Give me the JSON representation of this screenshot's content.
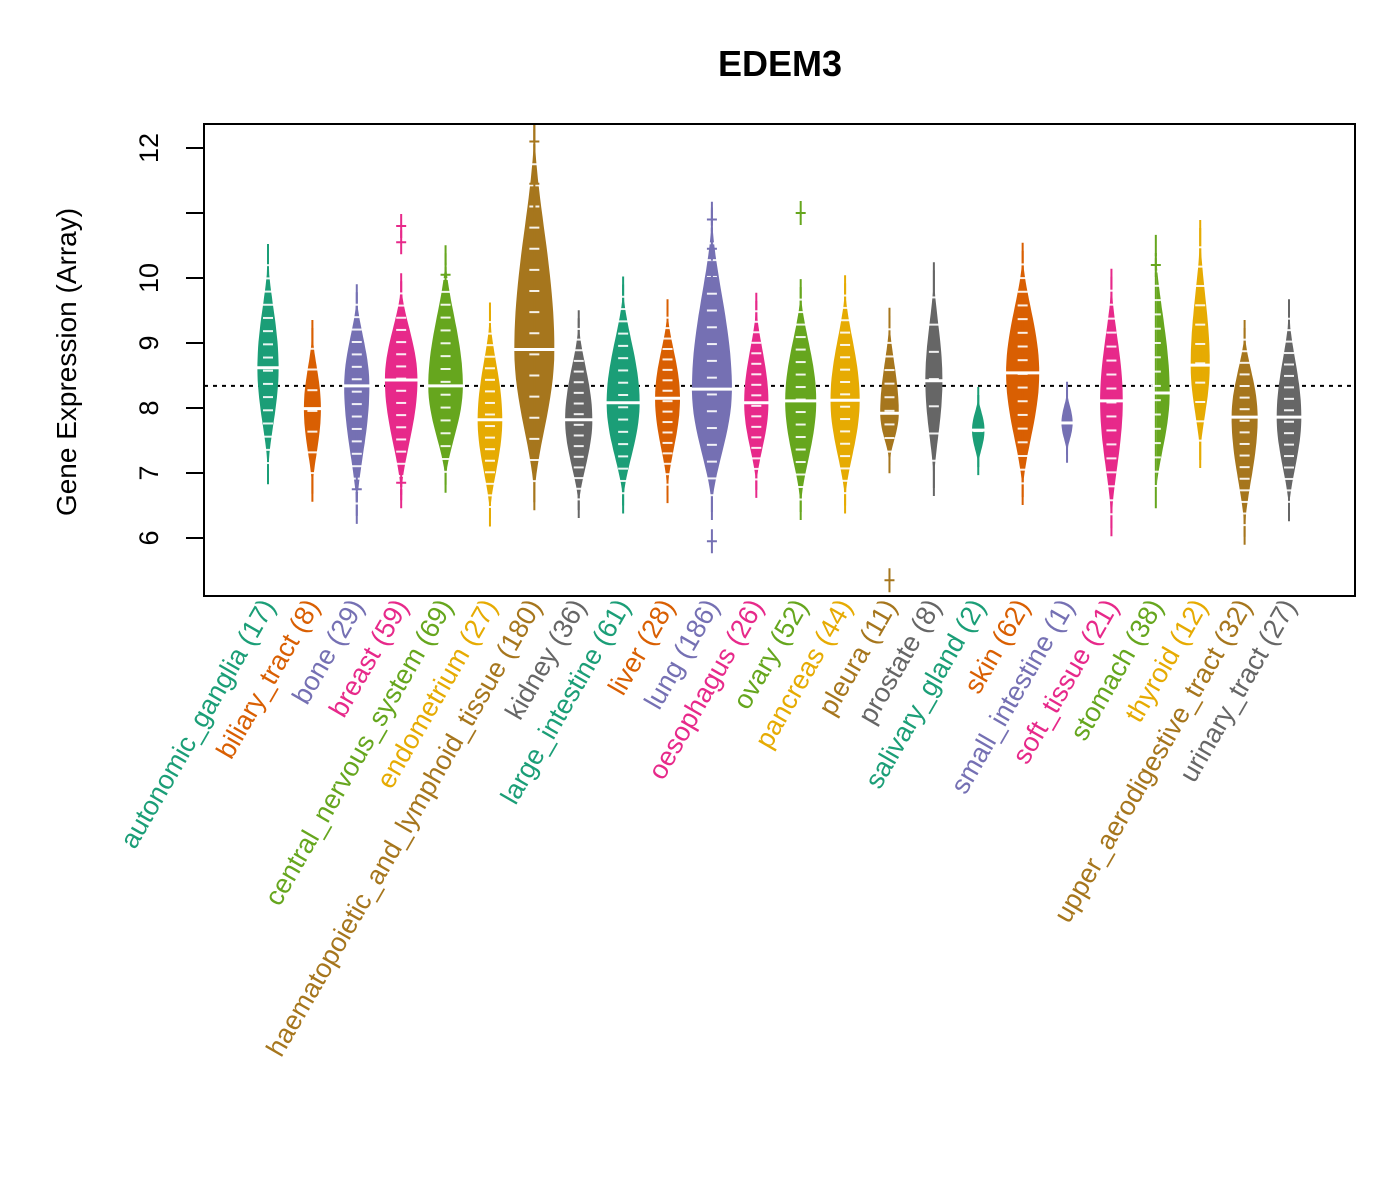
{
  "chart_data": {
    "type": "violin",
    "title": "EDEM3",
    "xlabel": "",
    "ylabel": "Gene Expression (Array)",
    "ylim": [
      5.1,
      12.4
    ],
    "yticks": [
      6,
      7,
      8,
      9,
      10,
      11,
      12
    ],
    "ytick_labels": [
      "6",
      "7",
      "8",
      "9",
      "10",
      "",
      "12"
    ],
    "reference_line": 8.34,
    "grid": false,
    "legend": "none",
    "palette": [
      "#1B9E77",
      "#D95F02",
      "#7570B3",
      "#E7298A",
      "#66A61E",
      "#E6AB02",
      "#A6761D",
      "#666666"
    ],
    "categories": [
      {
        "name": "autonomic_ganglia",
        "n": 17,
        "label": "autonomic_ganglia (17)",
        "color": "#1B9E77",
        "median": 8.62,
        "min": 6.95,
        "max": 10.4,
        "outliers": []
      },
      {
        "name": "biliary_tract",
        "n": 8,
        "label": "biliary_tract (8)",
        "color": "#D95F02",
        "median": 7.99,
        "min": 6.68,
        "max": 9.23,
        "outliers": []
      },
      {
        "name": "bone",
        "n": 29,
        "label": "bone (29)",
        "color": "#7570B3",
        "median": 8.34,
        "min": 6.34,
        "max": 9.78,
        "outliers": [
          6.75
        ]
      },
      {
        "name": "breast",
        "n": 59,
        "label": "breast (59)",
        "color": "#E7298A",
        "median": 8.43,
        "min": 6.58,
        "max": 9.95,
        "outliers": [
          10.55,
          10.8,
          6.85
        ]
      },
      {
        "name": "central_nervous_system",
        "n": 69,
        "label": "central_nervous_system (69)",
        "color": "#66A61E",
        "median": 8.34,
        "min": 6.82,
        "max": 10.38,
        "outliers": [
          10.05
        ]
      },
      {
        "name": "endometrium",
        "n": 27,
        "label": "endometrium (27)",
        "color": "#E6AB02",
        "median": 7.82,
        "min": 6.3,
        "max": 9.5,
        "outliers": []
      },
      {
        "name": "haematopoietic_and_lymphoid_tissue",
        "n": 180,
        "label": "haematopoietic_and_lymphoid_tissue (180)",
        "color": "#A6761D",
        "median": 8.9,
        "min": 6.55,
        "max": 12.4,
        "outliers": [
          12.1,
          11.45,
          11.2,
          11.0
        ]
      },
      {
        "name": "kidney",
        "n": 36,
        "label": "kidney (36)",
        "color": "#666666",
        "median": 7.82,
        "min": 6.43,
        "max": 9.38,
        "outliers": []
      },
      {
        "name": "large_intestine",
        "n": 61,
        "label": "large_intestine (61)",
        "color": "#1B9E77",
        "median": 8.08,
        "min": 6.5,
        "max": 9.9,
        "outliers": []
      },
      {
        "name": "liver",
        "n": 28,
        "label": "liver (28)",
        "color": "#D95F02",
        "median": 8.15,
        "min": 6.66,
        "max": 9.55,
        "outliers": []
      },
      {
        "name": "lung",
        "n": 186,
        "label": "lung (186)",
        "color": "#7570B3",
        "median": 8.29,
        "min": 6.4,
        "max": 11.05,
        "outliers": [
          10.9,
          10.45,
          10.0,
          5.95
        ]
      },
      {
        "name": "oesophagus",
        "n": 26,
        "label": "oesophagus (26)",
        "color": "#E7298A",
        "median": 8.08,
        "min": 6.74,
        "max": 9.65,
        "outliers": []
      },
      {
        "name": "ovary",
        "n": 52,
        "label": "ovary (52)",
        "color": "#66A61E",
        "median": 8.11,
        "min": 6.4,
        "max": 9.86,
        "outliers": [
          11.0
        ]
      },
      {
        "name": "pancreas",
        "n": 44,
        "label": "pancreas (44)",
        "color": "#E6AB02",
        "median": 8.12,
        "min": 6.5,
        "max": 9.92,
        "outliers": []
      },
      {
        "name": "pleura",
        "n": 11,
        "label": "pleura (11)",
        "color": "#A6761D",
        "median": 7.92,
        "min": 7.12,
        "max": 9.42,
        "outliers": [
          5.35
        ]
      },
      {
        "name": "prostate",
        "n": 8,
        "label": "prostate (8)",
        "color": "#666666",
        "median": 8.42,
        "min": 6.77,
        "max": 10.12,
        "outliers": []
      },
      {
        "name": "salivary_gland",
        "n": 2,
        "label": "salivary_gland (2)",
        "color": "#1B9E77",
        "median": 7.66,
        "min": 7.09,
        "max": 8.2,
        "outliers": []
      },
      {
        "name": "skin",
        "n": 62,
        "label": "skin (62)",
        "color": "#D95F02",
        "median": 8.54,
        "min": 6.63,
        "max": 10.42,
        "outliers": []
      },
      {
        "name": "small_intestine",
        "n": 1,
        "label": "small_intestine (1)",
        "color": "#7570B3",
        "median": 7.77,
        "min": 7.28,
        "max": 8.28,
        "outliers": []
      },
      {
        "name": "soft_tissue",
        "n": 21,
        "label": "soft_tissue (21)",
        "color": "#E7298A",
        "median": 8.11,
        "min": 6.15,
        "max": 10.02,
        "outliers": []
      },
      {
        "name": "stomach",
        "n": 38,
        "label": "stomach (38)",
        "color": "#66A61E",
        "median": 8.23,
        "min": 6.58,
        "max": 10.54,
        "outliers": [
          10.2
        ]
      },
      {
        "name": "thyroid",
        "n": 12,
        "label": "thyroid (12)",
        "color": "#E6AB02",
        "median": 8.66,
        "min": 7.2,
        "max": 10.77,
        "outliers": []
      },
      {
        "name": "upper_aerodigestive_tract",
        "n": 32,
        "label": "upper_aerodigestive_tract (32)",
        "color": "#A6761D",
        "median": 7.86,
        "min": 6.02,
        "max": 9.23,
        "outliers": []
      },
      {
        "name": "urinary_tract",
        "n": 27,
        "label": "urinary_tract (27)",
        "color": "#666666",
        "median": 7.86,
        "min": 6.38,
        "max": 9.55,
        "outliers": []
      }
    ]
  }
}
